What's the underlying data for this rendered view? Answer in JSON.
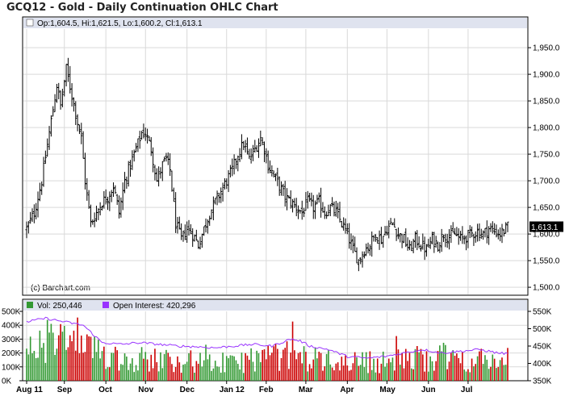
{
  "title": "GCQ12 - Gold - Daily Continuation OHLC Chart",
  "colors": {
    "bar": "#000000",
    "grid": "#d9d9d9",
    "header_band": "#dfe3ef",
    "vol_up": "#339933",
    "vol_down": "#cc0000",
    "open_interest": "#9933ff"
  },
  "chart_data": [
    {
      "type": "ohlc",
      "header": "Op:1,604.5, Hi:1,621.5, Lo:1,600.2, Cl:1,613.1",
      "last_value_label": "1,613.1",
      "copyright": "(c) Barchart.com",
      "ylim": [
        1485,
        1985
      ],
      "y_ticks": [
        1500,
        1550,
        1600,
        1650,
        1700,
        1750,
        1800,
        1850,
        1900,
        1950
      ],
      "y_tick_labels": [
        "1,500.0",
        "1,550.0",
        "1,600.0",
        "1,650.0",
        "1,700.0",
        "1,750.0",
        "1,800.0",
        "1,850.0",
        "1,900.0",
        "1,950.0"
      ],
      "x_labels": [
        "Aug 11",
        "Sep",
        "Oct",
        "Nov",
        "Dec",
        "Jan 12",
        "Feb",
        "Mar",
        "Apr",
        "May",
        "Jun",
        "Jul"
      ],
      "x_label_positions": [
        0,
        20,
        42,
        63,
        85,
        106,
        127,
        148,
        170,
        191,
        213,
        234
      ],
      "n_bars": 256,
      "close_anchors": [
        [
          0,
          1610
        ],
        [
          4,
          1640
        ],
        [
          8,
          1700
        ],
        [
          12,
          1790
        ],
        [
          16,
          1880
        ],
        [
          18,
          1840
        ],
        [
          21,
          1910
        ],
        [
          24,
          1860
        ],
        [
          27,
          1810
        ],
        [
          29,
          1780
        ],
        [
          31,
          1700
        ],
        [
          34,
          1620
        ],
        [
          37,
          1640
        ],
        [
          40,
          1660
        ],
        [
          43,
          1670
        ],
        [
          46,
          1690
        ],
        [
          49,
          1640
        ],
        [
          52,
          1700
        ],
        [
          55,
          1730
        ],
        [
          58,
          1760
        ],
        [
          61,
          1790
        ],
        [
          63,
          1790
        ],
        [
          66,
          1760
        ],
        [
          69,
          1700
        ],
        [
          72,
          1730
        ],
        [
          74,
          1740
        ],
        [
          76,
          1720
        ],
        [
          79,
          1620
        ],
        [
          82,
          1590
        ],
        [
          85,
          1610
        ],
        [
          88,
          1600
        ],
        [
          91,
          1580
        ],
        [
          94,
          1610
        ],
        [
          97,
          1640
        ],
        [
          100,
          1660
        ],
        [
          103,
          1680
        ],
        [
          106,
          1700
        ],
        [
          109,
          1720
        ],
        [
          112,
          1750
        ],
        [
          115,
          1770
        ],
        [
          118,
          1740
        ],
        [
          121,
          1760
        ],
        [
          124,
          1780
        ],
        [
          126,
          1760
        ],
        [
          128,
          1730
        ],
        [
          131,
          1710
        ],
        [
          134,
          1690
        ],
        [
          137,
          1670
        ],
        [
          140,
          1660
        ],
        [
          143,
          1650
        ],
        [
          146,
          1640
        ],
        [
          149,
          1660
        ],
        [
          152,
          1650
        ],
        [
          155,
          1660
        ],
        [
          158,
          1640
        ],
        [
          161,
          1650
        ],
        [
          164,
          1640
        ],
        [
          167,
          1620
        ],
        [
          170,
          1600
        ],
        [
          173,
          1570
        ],
        [
          176,
          1550
        ],
        [
          179,
          1570
        ],
        [
          182,
          1580
        ],
        [
          185,
          1600
        ],
        [
          188,
          1590
        ],
        [
          191,
          1610
        ],
        [
          194,
          1620
        ],
        [
          197,
          1600
        ],
        [
          200,
          1590
        ],
        [
          203,
          1570
        ],
        [
          206,
          1590
        ],
        [
          209,
          1580
        ],
        [
          212,
          1570
        ],
        [
          215,
          1590
        ],
        [
          218,
          1580
        ],
        [
          221,
          1600
        ],
        [
          224,
          1595
        ],
        [
          227,
          1600
        ],
        [
          230,
          1590
        ],
        [
          233,
          1595
        ],
        [
          236,
          1600
        ],
        [
          239,
          1605
        ],
        [
          242,
          1600
        ],
        [
          245,
          1610
        ],
        [
          248,
          1605
        ],
        [
          251,
          1600
        ],
        [
          255,
          1613
        ]
      ]
    },
    {
      "type": "bar+line",
      "volume_header": "Vol: 250,446",
      "oi_header": "Open Interest: 420,296",
      "left_ylim": [
        0,
        500000
      ],
      "left_ticks": [
        0,
        100000,
        200000,
        300000,
        400000,
        500000
      ],
      "left_tick_labels": [
        "0K",
        "100K",
        "200K",
        "300K",
        "400K",
        "500K"
      ],
      "right_ylim": [
        350000,
        550000
      ],
      "right_ticks": [
        350000,
        400000,
        450000,
        500000,
        550000
      ],
      "right_tick_labels": [
        "350K",
        "400K",
        "450K",
        "500K",
        "550K"
      ],
      "oi_anchors": [
        [
          0,
          520000
        ],
        [
          10,
          530000
        ],
        [
          20,
          520000
        ],
        [
          30,
          510000
        ],
        [
          40,
          460000
        ],
        [
          50,
          455000
        ],
        [
          60,
          460000
        ],
        [
          70,
          455000
        ],
        [
          80,
          450000
        ],
        [
          90,
          448000
        ],
        [
          100,
          445000
        ],
        [
          110,
          450000
        ],
        [
          120,
          455000
        ],
        [
          130,
          450000
        ],
        [
          140,
          470000
        ],
        [
          145,
          465000
        ],
        [
          150,
          450000
        ],
        [
          160,
          440000
        ],
        [
          170,
          420000
        ],
        [
          180,
          415000
        ],
        [
          190,
          420000
        ],
        [
          200,
          430000
        ],
        [
          210,
          440000
        ],
        [
          220,
          430000
        ],
        [
          230,
          435000
        ],
        [
          240,
          440000
        ],
        [
          250,
          430000
        ],
        [
          255,
          428000
        ]
      ],
      "vol_profile": [
        [
          0,
          220000
        ],
        [
          12,
          320000
        ],
        [
          20,
          300000
        ],
        [
          35,
          230000
        ],
        [
          50,
          180000
        ],
        [
          70,
          170000
        ],
        [
          90,
          150000
        ],
        [
          105,
          120000
        ],
        [
          120,
          180000
        ],
        [
          140,
          200000
        ],
        [
          160,
          160000
        ],
        [
          190,
          150000
        ],
        [
          215,
          190000
        ],
        [
          240,
          160000
        ],
        [
          255,
          170000
        ]
      ]
    }
  ]
}
